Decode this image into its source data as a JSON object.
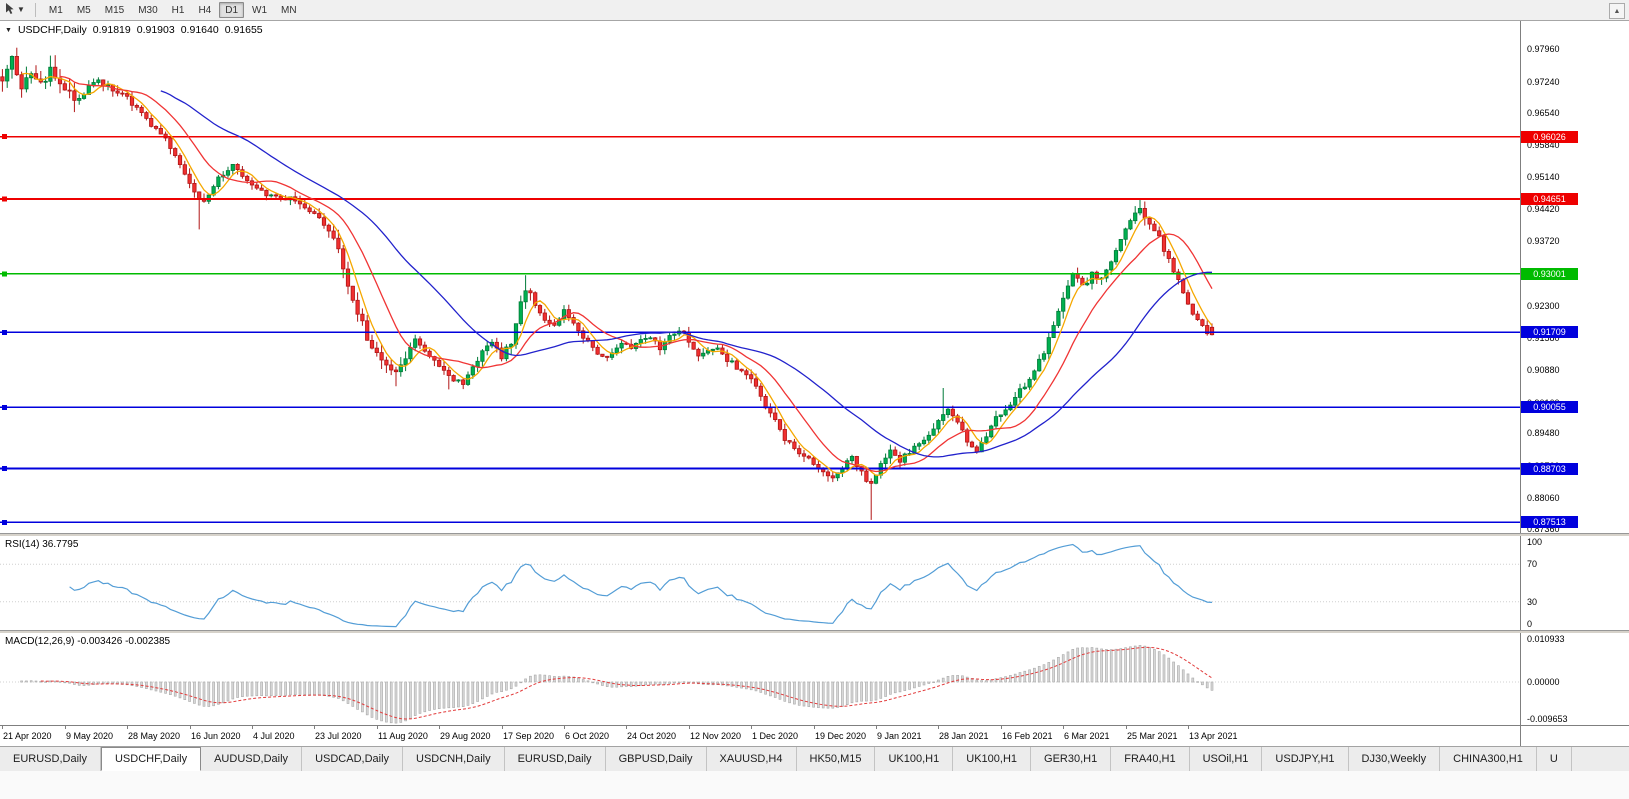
{
  "toolbar": {
    "timeframes": [
      {
        "label": "M1"
      },
      {
        "label": "M5"
      },
      {
        "label": "M15"
      },
      {
        "label": "M30"
      },
      {
        "label": "H1"
      },
      {
        "label": "H4"
      },
      {
        "label": "D1"
      },
      {
        "label": "W1"
      },
      {
        "label": "MN"
      }
    ],
    "active_timeframe": "D1"
  },
  "chart_header": {
    "symbol": "USDCHF,Daily",
    "open": "0.91819",
    "high": "0.91903",
    "low": "0.91640",
    "close": "0.91655"
  },
  "price_axis": {
    "range": [
      0.8728,
      0.9858
    ],
    "labels": [
      "0.97960",
      "0.97240",
      "0.96540",
      "0.95840",
      "0.95140",
      "0.94420",
      "0.93720",
      "0.93020",
      "0.92300",
      "0.91580",
      "0.90880",
      "0.90160",
      "0.89480",
      "0.88760",
      "0.88060",
      "0.87360"
    ]
  },
  "hlines": [
    {
      "price": 0.96026,
      "label": "0.96026",
      "color": "#ee0000"
    },
    {
      "price": 0.94651,
      "label": "0.94651",
      "color": "#ee0000"
    },
    {
      "price": 0.93001,
      "label": "0.93001",
      "color": "#00bb00"
    },
    {
      "price": 0.91709,
      "label": "0.91709",
      "color": "#0000dd"
    },
    {
      "price": 0.90055,
      "label": "0.90055",
      "color": "#0000dd"
    },
    {
      "price": 0.88703,
      "label": "0.88703",
      "color": "#0000dd"
    },
    {
      "price": 0.87513,
      "label": "0.87513",
      "color": "#0000dd"
    }
  ],
  "chart_data": {
    "type": "candlestick",
    "symbol": "USDCHF",
    "timeframe": "Daily",
    "current_ohlc": {
      "open": 0.91819,
      "high": 0.91903,
      "low": 0.9164,
      "close": 0.91655
    },
    "bars_total": 253,
    "bar_width": 4.8,
    "bars_per_label": 13,
    "x_labels": [
      "21 Apr 2020",
      "9 May 2020",
      "28 May 2020",
      "16 Jun 2020",
      "4 Jul 2020",
      "23 Jul 2020",
      "11 Aug 2020",
      "29 Aug 2020",
      "17 Sep 2020",
      "6 Oct 2020",
      "24 Oct 2020",
      "12 Nov 2020",
      "1 Dec 2020",
      "19 Dec 2020",
      "9 Jan 2021",
      "28 Jan 2021",
      "16 Feb 2021",
      "6 Mar 2021",
      "25 Mar 2021",
      "13 Apr 2021"
    ],
    "price_keypoints": [
      [
        0,
        0.9735
      ],
      [
        2,
        0.9778
      ],
      [
        4,
        0.9705
      ],
      [
        6,
        0.9752
      ],
      [
        8,
        0.972
      ],
      [
        10,
        0.9748
      ],
      [
        13,
        0.971
      ],
      [
        16,
        0.9682
      ],
      [
        19,
        0.9726
      ],
      [
        22,
        0.9714
      ],
      [
        25,
        0.97
      ],
      [
        28,
        0.9662
      ],
      [
        31,
        0.963
      ],
      [
        34,
        0.96
      ],
      [
        36,
        0.9562
      ],
      [
        38,
        0.9524
      ],
      [
        40,
        0.9482
      ],
      [
        42,
        0.9455
      ],
      [
        44,
        0.9498
      ],
      [
        46,
        0.952
      ],
      [
        48,
        0.9542
      ],
      [
        50,
        0.9515
      ],
      [
        52,
        0.9498
      ],
      [
        55,
        0.9478
      ],
      [
        58,
        0.9462
      ],
      [
        60,
        0.9472
      ],
      [
        62,
        0.9452
      ],
      [
        64,
        0.9438
      ],
      [
        66,
        0.9424
      ],
      [
        68,
        0.94
      ],
      [
        70,
        0.9352
      ],
      [
        72,
        0.9278
      ],
      [
        74,
        0.9212
      ],
      [
        76,
        0.9162
      ],
      [
        78,
        0.9128
      ],
      [
        80,
        0.9098
      ],
      [
        82,
        0.9075
      ],
      [
        84,
        0.9122
      ],
      [
        86,
        0.9155
      ],
      [
        88,
        0.9132
      ],
      [
        90,
        0.9105
      ],
      [
        92,
        0.9082
      ],
      [
        94,
        0.9068
      ],
      [
        96,
        0.9058
      ],
      [
        98,
        0.9092
      ],
      [
        100,
        0.9128
      ],
      [
        102,
        0.9145
      ],
      [
        104,
        0.9116
      ],
      [
        106,
        0.915
      ],
      [
        108,
        0.9238
      ],
      [
        109,
        0.9272
      ],
      [
        111,
        0.9236
      ],
      [
        113,
        0.9198
      ],
      [
        115,
        0.9185
      ],
      [
        117,
        0.9216
      ],
      [
        119,
        0.9192
      ],
      [
        121,
        0.916
      ],
      [
        123,
        0.9134
      ],
      [
        125,
        0.9112
      ],
      [
        127,
        0.9126
      ],
      [
        129,
        0.915
      ],
      [
        131,
        0.9132
      ],
      [
        133,
        0.915
      ],
      [
        135,
        0.9163
      ],
      [
        137,
        0.9136
      ],
      [
        139,
        0.916
      ],
      [
        141,
        0.9178
      ],
      [
        143,
        0.9154
      ],
      [
        145,
        0.9122
      ],
      [
        147,
        0.9136
      ],
      [
        149,
        0.9142
      ],
      [
        151,
        0.9112
      ],
      [
        153,
        0.9092
      ],
      [
        155,
        0.9074
      ],
      [
        157,
        0.9052
      ],
      [
        159,
        0.9008
      ],
      [
        161,
        0.8974
      ],
      [
        163,
        0.8938
      ],
      [
        165,
        0.8912
      ],
      [
        167,
        0.8896
      ],
      [
        169,
        0.8882
      ],
      [
        171,
        0.8862
      ],
      [
        173,
        0.8846
      ],
      [
        175,
        0.8872
      ],
      [
        177,
        0.8895
      ],
      [
        179,
        0.886
      ],
      [
        181,
        0.8832
      ],
      [
        183,
        0.8876
      ],
      [
        185,
        0.8912
      ],
      [
        187,
        0.889
      ],
      [
        189,
        0.8906
      ],
      [
        191,
        0.8922
      ],
      [
        193,
        0.8944
      ],
      [
        195,
        0.8972
      ],
      [
        197,
        0.9
      ],
      [
        199,
        0.8974
      ],
      [
        201,
        0.893
      ],
      [
        203,
        0.8912
      ],
      [
        205,
        0.8945
      ],
      [
        207,
        0.898
      ],
      [
        209,
        0.9002
      ],
      [
        211,
        0.9028
      ],
      [
        213,
        0.9056
      ],
      [
        215,
        0.9086
      ],
      [
        217,
        0.9126
      ],
      [
        219,
        0.9182
      ],
      [
        221,
        0.9252
      ],
      [
        223,
        0.93
      ],
      [
        225,
        0.9268
      ],
      [
        227,
        0.9302
      ],
      [
        229,
        0.9286
      ],
      [
        231,
        0.9322
      ],
      [
        233,
        0.9375
      ],
      [
        235,
        0.942
      ],
      [
        237,
        0.9443
      ],
      [
        239,
        0.9408
      ],
      [
        241,
        0.938
      ],
      [
        243,
        0.933
      ],
      [
        245,
        0.9282
      ],
      [
        247,
        0.9235
      ],
      [
        249,
        0.9196
      ],
      [
        251,
        0.9172
      ],
      [
        252,
        0.9166
      ]
    ],
    "wick_overrides": {
      "3": {
        "high": 0.9799
      },
      "41": {
        "low": 0.9398
      },
      "82": {
        "low": 0.9052
      },
      "93": {
        "low": 0.9045
      },
      "109": {
        "high": 0.9297
      },
      "181": {
        "low": 0.8757
      },
      "196": {
        "high": 0.9048
      },
      "237": {
        "high": 0.9465
      }
    },
    "volatility_zones": [
      [
        0,
        15,
        2.2
      ],
      [
        68,
        84,
        1.6
      ],
      [
        105,
        112,
        1.6
      ],
      [
        219,
        238,
        1.3
      ]
    ],
    "moving_averages": [
      {
        "period": 5,
        "color": "#f5a800",
        "name": "fast"
      },
      {
        "period": 13,
        "color": "#f03535",
        "name": "medium"
      },
      {
        "period": 34,
        "color": "#2222cc",
        "name": "slow"
      }
    ],
    "up_color": "#00b050",
    "up_border": "#007a38",
    "down_color": "#f03030",
    "down_border": "#b01515"
  },
  "rsi": {
    "label": "RSI(14) 36.7795",
    "period": 14,
    "current": 36.7795,
    "line_color": "#539dd6",
    "range": [
      0,
      100
    ],
    "levels": [
      70,
      30
    ],
    "axis_labels": [
      {
        "value": 100,
        "text": "100"
      },
      {
        "value": 70,
        "text": "70"
      },
      {
        "value": 30,
        "text": "30"
      },
      {
        "value": 0,
        "text": "0"
      }
    ]
  },
  "macd": {
    "label": "MACD(12,26,9) -0.003426 -0.002385",
    "fast": 12,
    "slow": 26,
    "signal": 9,
    "macd_value": -0.003426,
    "signal_value": -0.002385,
    "range": [
      -0.0107,
      0.0122
    ],
    "axis_labels": [
      {
        "value": 0.010933,
        "text": "0.010933"
      },
      {
        "value": 0,
        "text": "0.00000"
      },
      {
        "value": -0.009653,
        "text": "-0.009653"
      }
    ],
    "histogram_color": "#d8d8d8",
    "histogram_border": "#a8a8a8",
    "signal_color": "#e23b3b"
  },
  "tabs": {
    "active_index": 1,
    "items": [
      "EURUSD,Daily",
      "USDCHF,Daily",
      "AUDUSD,Daily",
      "USDCAD,Daily",
      "USDCNH,Daily",
      "EURUSD,Daily",
      "GBPUSD,Daily",
      "XAUUSD,H4",
      "HK50,M15",
      "UK100,H1",
      "UK100,H1",
      "GER30,H1",
      "FRA40,H1",
      "USOil,H1",
      "USDJPY,H1",
      "DJ30,Weekly",
      "CHINA300,H1",
      "U"
    ]
  }
}
